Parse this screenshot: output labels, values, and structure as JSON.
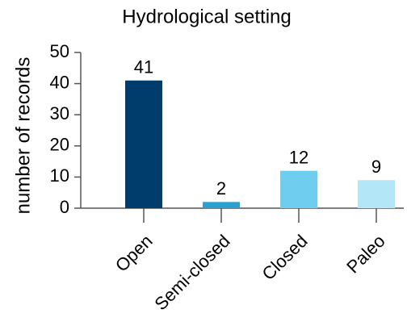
{
  "chart_data": {
    "type": "bar",
    "title": "Hydrological setting",
    "y_label": "number of records",
    "categories": [
      "Open",
      "Semi-closed",
      "Closed",
      "Paleo"
    ],
    "values": [
      41,
      2,
      12,
      9
    ],
    "colors": [
      "#003c6c",
      "#2a9fd0",
      "#6fcdf0",
      "#b3e6f7"
    ],
    "ylim": [
      0,
      50
    ],
    "yticks": [
      0,
      10,
      20,
      30,
      40,
      50
    ],
    "grid": false
  }
}
